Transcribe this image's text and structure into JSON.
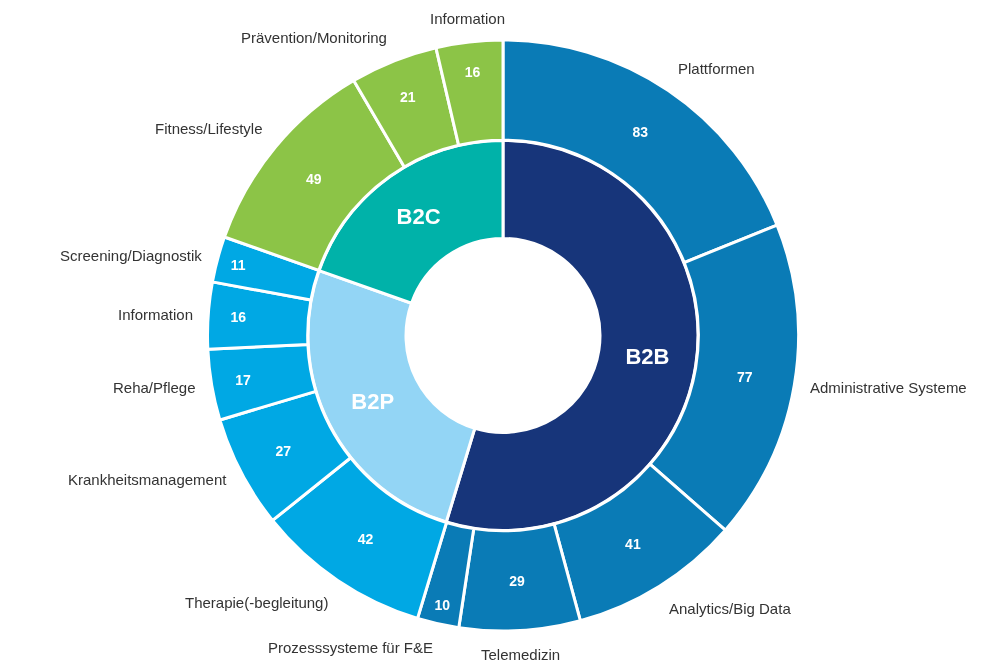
{
  "chart_data": [
    {
      "type": "donut",
      "categories": [
        "B2B",
        "B2P",
        "B2C"
      ],
      "values": [
        54.7,
        25.7,
        19.6
      ],
      "colors": [
        "#17357a",
        "#93d5f5",
        "#00b2a9"
      ]
    },
    {
      "type": "donut",
      "data_labels": true,
      "categories": [
        "Plattformen",
        "Administrative Systeme",
        "Analytics/Big Data",
        "Telemedizin",
        "Prozesssysteme für F&E",
        "Therapie(-begleitung)",
        "Krankheitsmanagement",
        "Reha/Pflege",
        "Information",
        "Screening/Diagnostik",
        "Fitness/Lifestyle",
        "Prävention/Monitoring",
        "Information"
      ],
      "values": [
        83,
        77,
        41,
        29,
        10,
        42,
        27,
        17,
        16,
        11,
        49,
        21,
        16
      ],
      "colors": [
        "#0a7bb6",
        "#0a7bb6",
        "#0a7bb6",
        "#0a7bb6",
        "#0a7bb6",
        "#00a8e4",
        "#00a8e4",
        "#00a8e4",
        "#00a8e4",
        "#00a8e4",
        "#8cc447",
        "#8cc447",
        "#8cc447"
      ]
    }
  ]
}
